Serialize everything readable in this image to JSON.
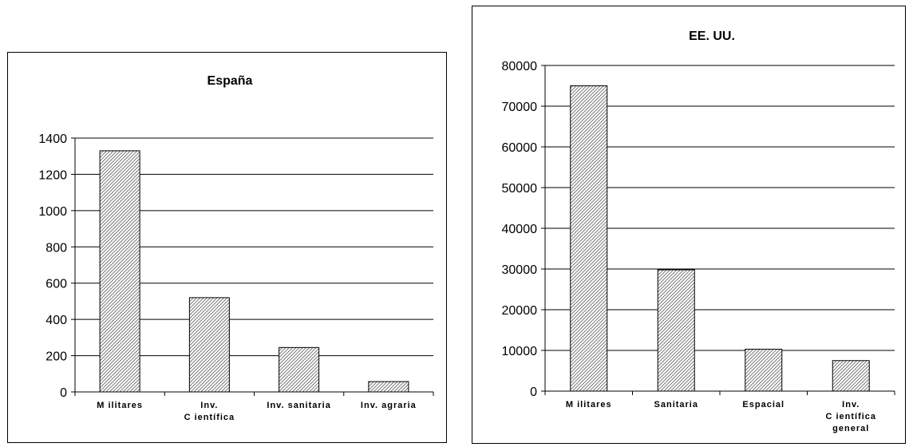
{
  "chart_data": [
    {
      "type": "bar",
      "title": "España",
      "categories": [
        "M ilitares",
        "Inv.\nC ientífica",
        "Inv. sanitaria",
        "Inv. agraria"
      ],
      "values": [
        1330,
        520,
        245,
        57
      ],
      "ylim": [
        0,
        1400
      ],
      "yticks": [
        "0",
        "200",
        "400",
        "600",
        "800",
        "1000",
        "1200",
        "1400"
      ],
      "xlabel": "",
      "ylabel": "",
      "grid": true,
      "bar_fill": "#8c8c8c"
    },
    {
      "type": "bar",
      "title": "EE. UU.",
      "categories": [
        "M ilitares",
        "Sanitaria",
        "Espacial",
        "Inv.\nC ientífica\ngeneral"
      ],
      "values": [
        75000,
        29800,
        10300,
        7500
      ],
      "ylim": [
        0,
        80000
      ],
      "yticks": [
        "0",
        "10000",
        "20000",
        "30000",
        "40000",
        "50000",
        "60000",
        "70000",
        "80000"
      ],
      "xlabel": "",
      "ylabel": "",
      "grid": true,
      "bar_fill": "#8c8c8c"
    }
  ]
}
